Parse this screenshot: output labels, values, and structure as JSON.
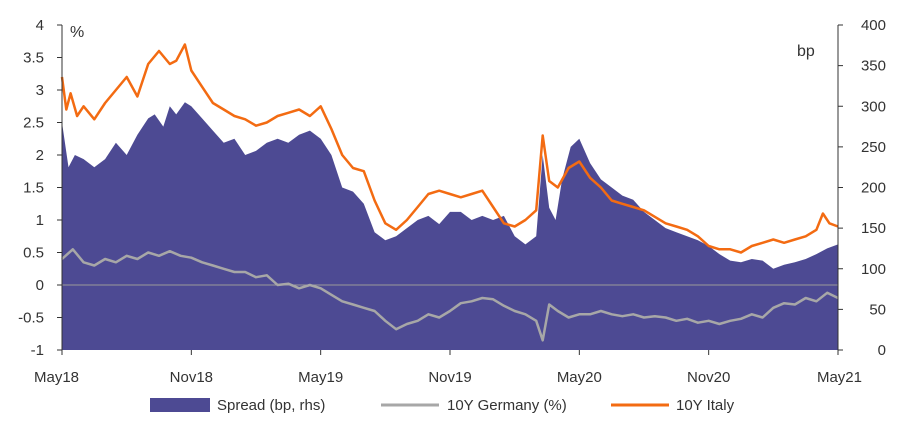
{
  "colors": {
    "spread": "#4d4a93",
    "germany": "#a7a7a7",
    "italy": "#f36b12",
    "zero_line": "#9a9a9a",
    "axis": "#333333"
  },
  "chart_data": {
    "type": "area",
    "x_range": [
      "2018-05",
      "2021-05"
    ],
    "x_ticks": [
      {
        "label": "May18",
        "x": 0
      },
      {
        "label": "Nov18",
        "x": 6
      },
      {
        "label": "May19",
        "x": 12
      },
      {
        "label": "Nov19",
        "x": 18
      },
      {
        "label": "May20",
        "x": 24
      },
      {
        "label": "Nov20",
        "x": 30
      },
      {
        "label": "May21",
        "x": 36
      }
    ],
    "y_left": {
      "unit_label": "%",
      "min": -1,
      "max": 4,
      "ticks": [
        "-1",
        "-0.5",
        "0",
        "0.5",
        "1",
        "1.5",
        "2",
        "2.5",
        "3",
        "3.5",
        "4"
      ]
    },
    "y_right": {
      "unit_label": "bp",
      "min": 0,
      "max": 400,
      "ticks": [
        "0",
        "50",
        "100",
        "150",
        "200",
        "250",
        "300",
        "350",
        "400"
      ]
    },
    "series": [
      {
        "name": "Spread (bp, rhs)",
        "axis": "right",
        "style": "area",
        "x": [
          0,
          0.3,
          0.6,
          1,
          1.5,
          2,
          2.5,
          3,
          3.5,
          4,
          4.3,
          4.7,
          5,
          5.3,
          5.7,
          6,
          6.5,
          7,
          7.5,
          8,
          8.5,
          9,
          9.5,
          10,
          10.5,
          11,
          11.5,
          12,
          12.5,
          13,
          13.5,
          14,
          14.5,
          15,
          15.5,
          16,
          16.5,
          17,
          17.5,
          18,
          18.5,
          19,
          19.5,
          20,
          20.5,
          21,
          21.5,
          22,
          22.3,
          22.6,
          22.9,
          23.2,
          23.6,
          24,
          24.5,
          25,
          25.5,
          26,
          26.5,
          27,
          27.5,
          28,
          28.5,
          29,
          29.5,
          30,
          30.5,
          31,
          31.5,
          32,
          32.5,
          33,
          33.5,
          34,
          34.5,
          35,
          35.5,
          36
        ],
        "values": [
          280,
          225,
          240,
          235,
          225,
          235,
          255,
          240,
          265,
          285,
          290,
          275,
          300,
          290,
          305,
          300,
          285,
          270,
          255,
          260,
          240,
          245,
          255,
          260,
          255,
          265,
          270,
          260,
          240,
          200,
          195,
          180,
          145,
          135,
          140,
          150,
          160,
          165,
          155,
          170,
          170,
          160,
          165,
          160,
          165,
          140,
          130,
          140,
          240,
          175,
          160,
          210,
          250,
          260,
          230,
          210,
          200,
          190,
          185,
          170,
          160,
          150,
          145,
          140,
          135,
          128,
          118,
          110,
          108,
          112,
          110,
          100,
          105,
          108,
          112,
          118,
          125,
          130
        ]
      },
      {
        "name": "10Y Germany (%)",
        "axis": "left",
        "style": "line",
        "x": [
          0,
          0.5,
          1,
          1.5,
          2,
          2.5,
          3,
          3.5,
          4,
          4.5,
          5,
          5.5,
          6,
          6.5,
          7,
          7.5,
          8,
          8.5,
          9,
          9.5,
          10,
          10.5,
          11,
          11.5,
          12,
          12.5,
          13,
          13.5,
          14,
          14.5,
          15,
          15.5,
          16,
          16.5,
          17,
          17.5,
          18,
          18.5,
          19,
          19.5,
          20,
          20.5,
          21,
          21.5,
          22,
          22.3,
          22.6,
          23,
          23.5,
          24,
          24.5,
          25,
          25.5,
          26,
          26.5,
          27,
          27.5,
          28,
          28.5,
          29,
          29.5,
          30,
          30.5,
          31,
          31.5,
          32,
          32.5,
          33,
          33.5,
          34,
          34.5,
          35,
          35.5,
          36
        ],
        "values": [
          0.4,
          0.55,
          0.35,
          0.3,
          0.4,
          0.35,
          0.45,
          0.4,
          0.5,
          0.45,
          0.52,
          0.45,
          0.42,
          0.35,
          0.3,
          0.25,
          0.2,
          0.2,
          0.12,
          0.15,
          0.0,
          0.02,
          -0.05,
          0.0,
          -0.05,
          -0.15,
          -0.25,
          -0.3,
          -0.35,
          -0.4,
          -0.55,
          -0.68,
          -0.6,
          -0.55,
          -0.45,
          -0.5,
          -0.4,
          -0.28,
          -0.25,
          -0.2,
          -0.22,
          -0.32,
          -0.4,
          -0.45,
          -0.55,
          -0.85,
          -0.3,
          -0.4,
          -0.5,
          -0.45,
          -0.45,
          -0.4,
          -0.45,
          -0.48,
          -0.45,
          -0.5,
          -0.48,
          -0.5,
          -0.55,
          -0.52,
          -0.58,
          -0.55,
          -0.6,
          -0.55,
          -0.52,
          -0.45,
          -0.5,
          -0.35,
          -0.28,
          -0.3,
          -0.2,
          -0.25,
          -0.12,
          -0.2
        ]
      },
      {
        "name": "10Y Italy",
        "axis": "left",
        "style": "line",
        "x": [
          0,
          0.2,
          0.4,
          0.7,
          1,
          1.5,
          2,
          2.5,
          3,
          3.5,
          4,
          4.5,
          5,
          5.3,
          5.7,
          6,
          6.5,
          7,
          7.5,
          8,
          8.5,
          9,
          9.5,
          10,
          10.5,
          11,
          11.5,
          12,
          12.5,
          13,
          13.5,
          14,
          14.5,
          15,
          15.5,
          16,
          16.5,
          17,
          17.5,
          18,
          18.5,
          19,
          19.5,
          20,
          20.5,
          21,
          21.5,
          22,
          22.3,
          22.6,
          23,
          23.5,
          24,
          24.5,
          25,
          25.5,
          26,
          26.5,
          27,
          27.5,
          28,
          28.5,
          29,
          29.5,
          30,
          30.5,
          31,
          31.5,
          32,
          32.5,
          33,
          33.5,
          34,
          34.5,
          35,
          35.3,
          35.6,
          36
        ],
        "values": [
          3.2,
          2.7,
          2.95,
          2.6,
          2.75,
          2.55,
          2.8,
          3.0,
          3.2,
          2.9,
          3.4,
          3.6,
          3.4,
          3.45,
          3.7,
          3.3,
          3.05,
          2.8,
          2.7,
          2.6,
          2.55,
          2.45,
          2.5,
          2.6,
          2.65,
          2.7,
          2.6,
          2.75,
          2.4,
          2.0,
          1.8,
          1.75,
          1.3,
          0.95,
          0.85,
          1.0,
          1.2,
          1.4,
          1.45,
          1.4,
          1.35,
          1.4,
          1.45,
          1.2,
          0.95,
          0.9,
          1.0,
          1.15,
          2.3,
          1.6,
          1.5,
          1.8,
          1.9,
          1.65,
          1.5,
          1.3,
          1.25,
          1.2,
          1.15,
          1.05,
          0.95,
          0.9,
          0.85,
          0.75,
          0.6,
          0.55,
          0.55,
          0.5,
          0.6,
          0.65,
          0.7,
          0.65,
          0.7,
          0.75,
          0.85,
          1.1,
          0.95,
          0.9
        ]
      }
    ],
    "legend": {
      "placement": "bottom",
      "items": [
        "Spread (bp, rhs)",
        "10Y Germany (%)",
        "10Y Italy"
      ]
    },
    "grid": false,
    "zero_line": true
  }
}
